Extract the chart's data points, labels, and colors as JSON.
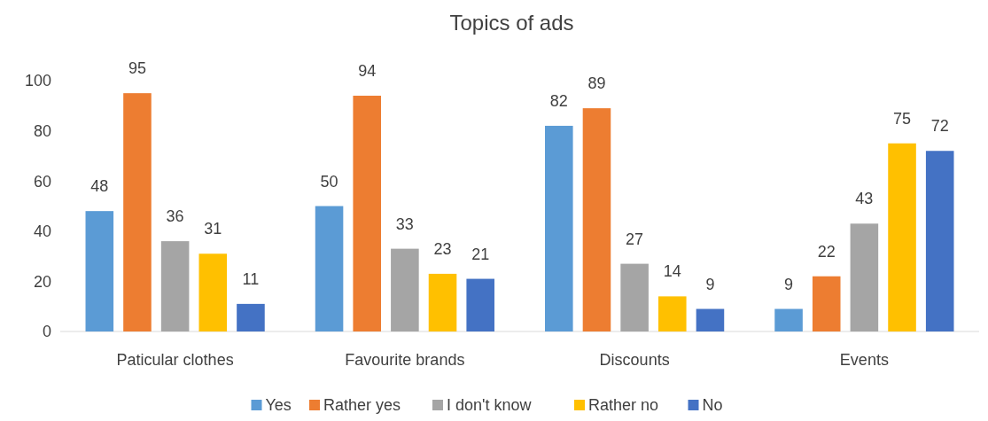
{
  "chart_data": {
    "type": "bar",
    "title": "Topics of ads",
    "categories": [
      "Paticular clothes",
      "Favourite brands",
      "Discounts",
      "Events"
    ],
    "series": [
      {
        "name": "Yes",
        "color": "#5b9bd5",
        "values": [
          48,
          50,
          82,
          9
        ]
      },
      {
        "name": "Rather yes",
        "color": "#ed7d31",
        "values": [
          95,
          94,
          89,
          22
        ]
      },
      {
        "name": "I don't know",
        "color": "#a5a5a5",
        "values": [
          36,
          33,
          27,
          43
        ]
      },
      {
        "name": "Rather no",
        "color": "#ffc000",
        "values": [
          31,
          23,
          14,
          75
        ]
      },
      {
        "name": "No",
        "color": "#4472c4",
        "values": [
          11,
          21,
          9,
          72
        ]
      }
    ],
    "ylim": [
      0,
      100
    ],
    "yticks": [
      0,
      20,
      40,
      60,
      80,
      100
    ],
    "grid": false,
    "legend": "bottom",
    "data_labels": true
  }
}
